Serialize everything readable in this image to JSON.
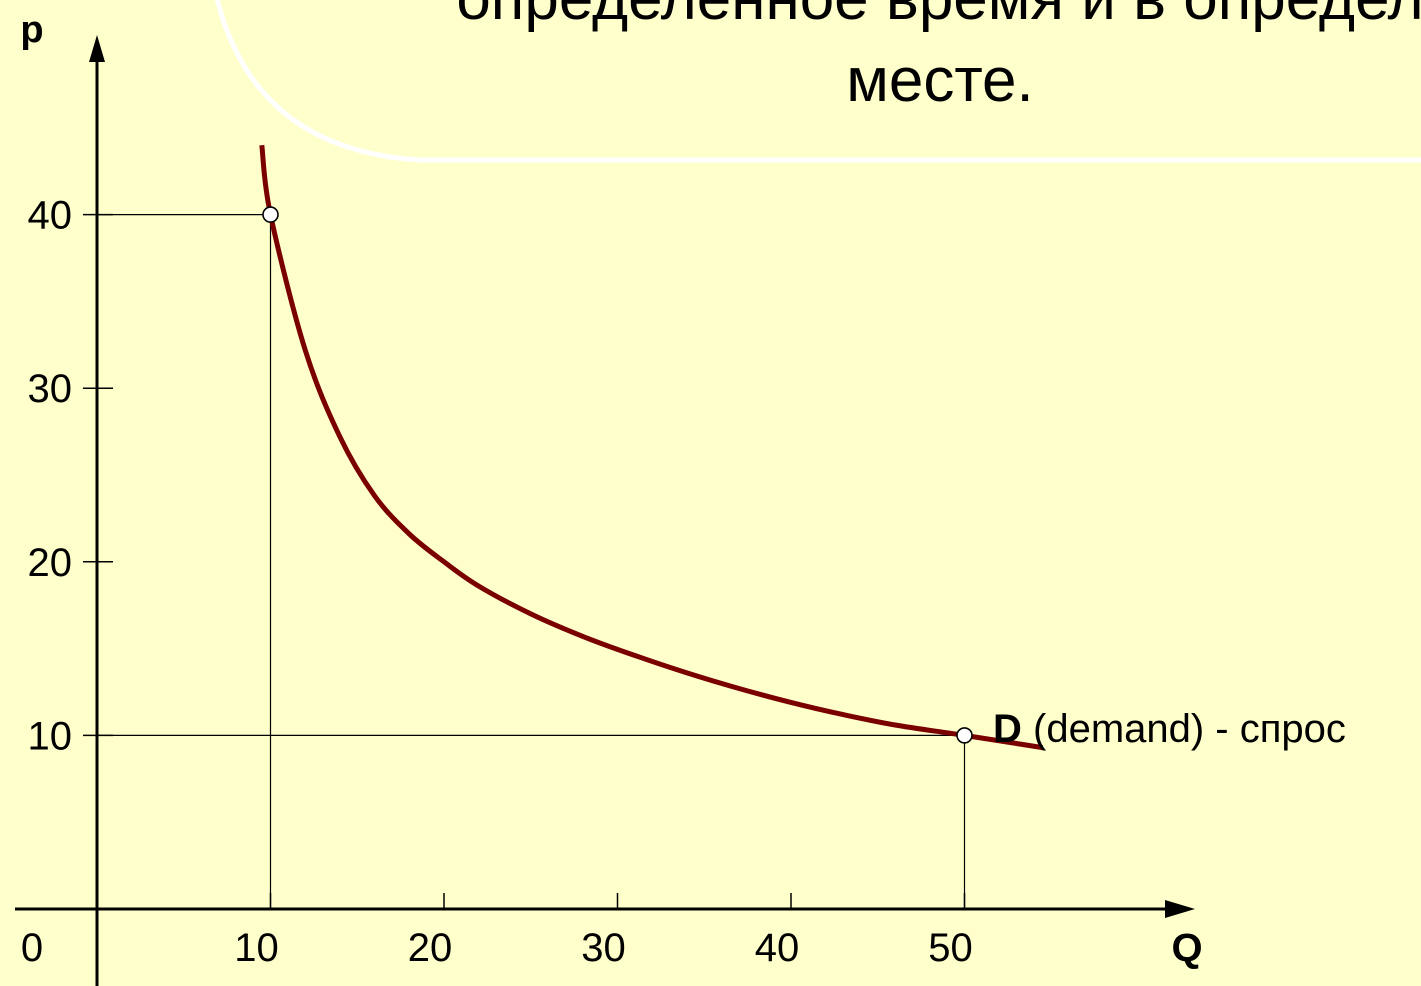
{
  "slide": {
    "title_line_1": "определенное время и в определ",
    "title_line_2": "месте."
  },
  "colors": {
    "background": "#FFFFCC",
    "curve": "#7A0000",
    "axes": "#000000",
    "title_box_border": "#FFFFFF"
  },
  "chart_data": {
    "type": "line",
    "xlabel": "Q",
    "ylabel": "p",
    "origin_label": "0",
    "xlim": [
      0,
      55
    ],
    "ylim": [
      0,
      45
    ],
    "x_ticks": [
      10,
      20,
      30,
      40,
      50
    ],
    "y_ticks": [
      10,
      20,
      30,
      40
    ],
    "series": [
      {
        "name": "D (demand) - спрос",
        "name_bold": "D",
        "name_rest": " (demand) - спрос",
        "x": [
          9.5,
          10,
          12,
          14,
          16,
          18,
          20,
          22,
          25,
          28,
          31,
          34,
          37,
          40,
          43,
          46,
          50,
          54.5
        ],
        "y": [
          44,
          40,
          32.2,
          27.2,
          23.8,
          21.6,
          20,
          18.6,
          17,
          15.7,
          14.6,
          13.6,
          12.7,
          11.9,
          11.2,
          10.6,
          10,
          9.3
        ]
      }
    ],
    "highlighted_points": [
      {
        "x": 10,
        "y": 40
      },
      {
        "x": 50,
        "y": 10
      }
    ],
    "grid": false
  }
}
